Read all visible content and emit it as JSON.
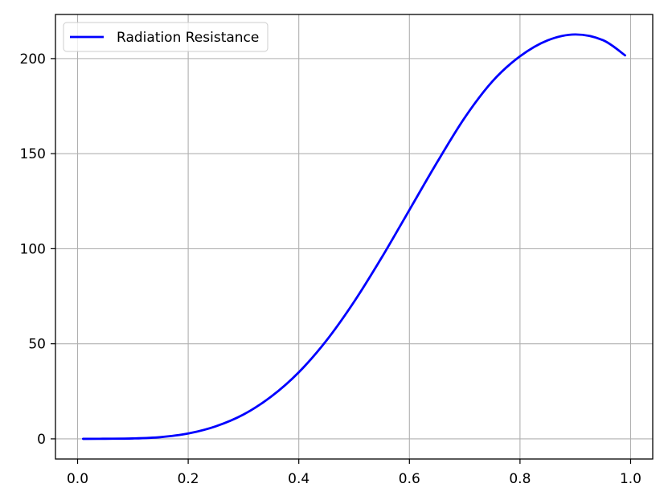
{
  "chart_data": {
    "type": "line",
    "title": "",
    "xlabel": "",
    "ylabel": "",
    "xlim": [
      -0.04,
      1.04
    ],
    "ylim": [
      -10.6,
      223.2
    ],
    "xticks": [
      0.0,
      0.2,
      0.4,
      0.6,
      0.8,
      1.0
    ],
    "xtick_labels": [
      "0.0",
      "0.2",
      "0.4",
      "0.6",
      "0.8",
      "1.0"
    ],
    "yticks": [
      0,
      50,
      100,
      150,
      200
    ],
    "ytick_labels": [
      "0",
      "50",
      "100",
      "150",
      "200"
    ],
    "grid": true,
    "legend": {
      "placement": "top-left",
      "entries": [
        "Radiation Resistance"
      ]
    },
    "series": [
      {
        "name": "Radiation Resistance",
        "color": "#0000ff",
        "x": [
          0.01,
          0.05,
          0.1,
          0.15,
          0.2,
          0.25,
          0.3,
          0.35,
          0.4,
          0.45,
          0.5,
          0.55,
          0.6,
          0.65,
          0.7,
          0.75,
          0.8,
          0.85,
          0.9,
          0.95,
          0.99
        ],
        "y": [
          0.0,
          0.05,
          0.2,
          0.9,
          2.8,
          6.6,
          12.8,
          22.2,
          35.0,
          51.7,
          72.1,
          95.4,
          120.4,
          145.4,
          168.9,
          188.0,
          201.2,
          209.6,
          212.7,
          209.7,
          201.7
        ]
      }
    ]
  }
}
